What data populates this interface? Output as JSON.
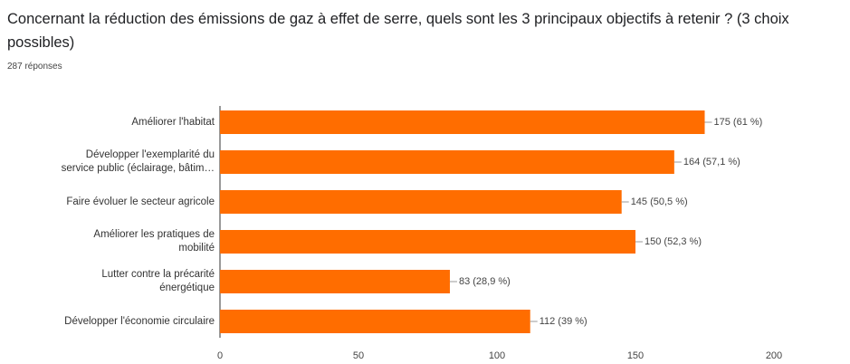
{
  "chart_data": {
    "type": "bar",
    "orientation": "horizontal",
    "title": "Concernant la réduction des émissions de gaz à effet de serre, quels sont les 3 principaux objectifs à retenir ? (3 choix possibles)",
    "subtitle": "287 réponses",
    "categories": [
      "Améliorer l'habitat",
      "Développer l'exemplarité du\nservice public (éclairage, bâtim…",
      "Faire évoluer le secteur agricole",
      "Améliorer les pratiques de\nmobilité",
      "Lutter contre la précarité\nénergétique",
      "Développer l'économie circulaire"
    ],
    "values": [
      175,
      164,
      145,
      150,
      83,
      112
    ],
    "value_labels": [
      "175 (61 %)",
      "164 (57,1 %)",
      "145 (50,5 %)",
      "150 (52,3 %)",
      "83 (28,9 %)",
      "112 (39 %)"
    ],
    "color": "#ff6d00",
    "xlim": [
      0,
      200
    ],
    "xticks": [
      0,
      50,
      100,
      150,
      200
    ],
    "grid": false
  }
}
